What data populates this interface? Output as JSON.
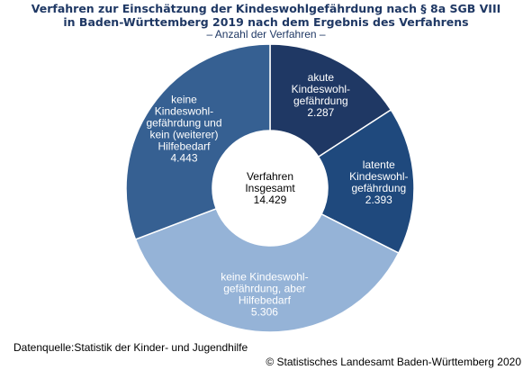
{
  "header": {
    "title_line1": "Verfahren zur Einschätzung der Kindeswohlgefährdung  nach § 8a SGB VIII",
    "title_line2": "in Baden-Württemberg 2019 nach dem Ergebnis des Verfahrens",
    "subtitle": "– Anzahl der Verfahren –"
  },
  "chart_data": {
    "type": "pie",
    "subtype": "donut",
    "title": "Verfahren zur Einschätzung der Kindeswohlgefährdung  nach § 8a SGB VIII in Baden-Württemberg 2019 nach dem Ergebnis des Verfahrens",
    "subtitle": "– Anzahl der Verfahren –",
    "center_label": [
      "Verfahren",
      "Insgesamt",
      "14.429"
    ],
    "total": 14429,
    "slices": [
      {
        "lines": [
          "akute",
          "Kindeswohl-",
          "gefährdung",
          "2.287"
        ],
        "value": 2287,
        "color": "#1f3864",
        "text_color": "#ffffff"
      },
      {
        "lines": [
          "latente",
          "Kindeswohl-",
          "gefährdung",
          "2.393"
        ],
        "value": 2393,
        "color": "#1f497d",
        "text_color": "#ffffff"
      },
      {
        "lines": [
          "keine Kindeswohl-",
          "gefährdung, aber",
          "Hilfebedarf",
          "5.306"
        ],
        "value": 5306,
        "color": "#95b3d7",
        "text_color": "#ffffff"
      },
      {
        "lines": [
          "keine",
          "Kindeswohl-",
          "gefährdung und",
          "kein (weiterer)",
          "Hilfebedarf",
          "4.443"
        ],
        "value": 4443,
        "color": "#366092",
        "text_color": "#ffffff"
      }
    ],
    "legend": "none"
  },
  "footer": {
    "source": "Datenquelle:Statistik der Kinder- und Jugendhilfe",
    "copyright": "© Statistisches Landesamt Baden-Württemberg 2020"
  }
}
